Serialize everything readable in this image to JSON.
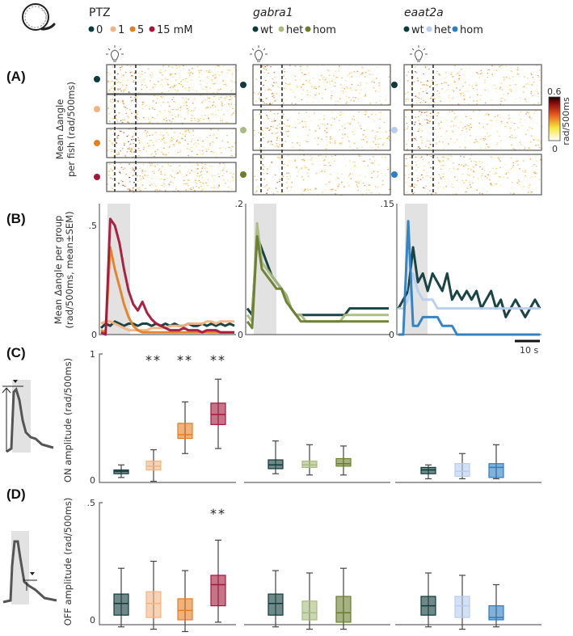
{
  "header": {
    "groups": [
      {
        "title": "PTZ",
        "italic": false,
        "legend": [
          {
            "label": "0",
            "color": "#0f3a3a"
          },
          {
            "label": "1",
            "color": "#f2b482"
          },
          {
            "label": "5",
            "color": "#e67e22"
          },
          {
            "label": "15 mM",
            "color": "#a5163a"
          }
        ]
      },
      {
        "title": "gabra1",
        "italic": true,
        "legend": [
          {
            "label": "wt",
            "color": "#0f3a3a"
          },
          {
            "label": "het",
            "color": "#a9bb7f"
          },
          {
            "label": "hom",
            "color": "#6b7e2c"
          }
        ]
      },
      {
        "title": "eaat2a",
        "italic": true,
        "legend": [
          {
            "label": "wt",
            "color": "#0f3a3a"
          },
          {
            "label": "het",
            "color": "#b7cdee"
          },
          {
            "label": "hom",
            "color": "#2b7ec2"
          }
        ]
      }
    ]
  },
  "panels": {
    "A": {
      "letter": "(A)",
      "ylabel_line1": "Mean Δangle",
      "ylabel_line2": "per fish (rad/500ms)",
      "colorbar": {
        "max_label": "0.6",
        "min_label": "0",
        "label": "rad/500ms"
      }
    },
    "B": {
      "letter": "(B)",
      "ylabel_line1": "Mean Δangle  per group",
      "ylabel_line2": "(rad/500ms, mean±SEM)",
      "scalebar_label": "10 s"
    },
    "C": {
      "letter": "(C)",
      "ylabel": "ON amplitude (rad/500ms)"
    },
    "D": {
      "letter": "(D)",
      "ylabel": "OFF amplitude (rad/500ms)"
    }
  },
  "chart_data": [
    {
      "type": "heatmap",
      "panel": "A",
      "title": "Per-fish mean Δangle raster",
      "groups": [
        "PTZ",
        "gabra1",
        "eaat2a"
      ],
      "rows": [
        [
          "0",
          "1",
          "5",
          "15 mM"
        ],
        [
          "wt",
          "het",
          "hom"
        ],
        [
          "wt",
          "het",
          "hom"
        ]
      ],
      "colorscale": {
        "min": 0,
        "max": 0.6,
        "unit": "rad/500ms",
        "colors": [
          "#ffffff",
          "#f6e43a",
          "#e8561c",
          "#8a0c0c",
          "#1a0000"
        ]
      },
      "light_on_marker": "lightbulb",
      "dashed_lines": [
        "light on",
        "light off"
      ]
    },
    {
      "type": "line",
      "panel": "B",
      "title": "PTZ",
      "ylim": [
        0,
        0.6
      ],
      "yticks": [
        0,
        0.5
      ],
      "ytick_labels": [
        "0",
        ".5"
      ],
      "shaded_region": "light on",
      "series": [
        {
          "name": "0",
          "color": "#0f3a3a",
          "values": [
            0.03,
            0.05,
            0.04,
            0.06,
            0.05,
            0.04,
            0.05,
            0.05,
            0.04,
            0.05,
            0.05,
            0.04,
            0.05,
            0.04,
            0.05,
            0.04,
            0.05,
            0.04,
            0.04,
            0.05,
            0.04,
            0.04,
            0.05,
            0.04,
            0.05,
            0.04,
            0.05,
            0.04,
            0.05,
            0.04
          ]
        },
        {
          "name": "1",
          "color": "#f2b482",
          "values": [
            0.05,
            0.06,
            0.06,
            0.05,
            0.04,
            0.03,
            0.02,
            0.02,
            0.02,
            0.02,
            0.02,
            0.03,
            0.03,
            0.03,
            0.03,
            0.04,
            0.04,
            0.04,
            0.04,
            0.05,
            0.05,
            0.05,
            0.05,
            0.06,
            0.06,
            0.05,
            0.06,
            0.06,
            0.06,
            0.06
          ]
        },
        {
          "name": "5",
          "color": "#e67e22",
          "values": [
            0.02,
            0.01,
            0.4,
            0.3,
            0.22,
            0.14,
            0.08,
            0.04,
            0.02,
            0.01,
            0.01,
            0.01,
            0.01,
            0.01,
            0.01,
            0.01,
            0.01,
            0.01,
            0.01,
            0.01,
            0.01,
            0.01,
            0.01,
            0.01,
            0.01,
            0.01,
            0.01,
            0.01,
            0.01,
            0.01
          ]
        },
        {
          "name": "15 mM",
          "color": "#a5163a",
          "values": [
            0.01,
            0.0,
            0.53,
            0.5,
            0.42,
            0.3,
            0.2,
            0.14,
            0.11,
            0.15,
            0.1,
            0.07,
            0.05,
            0.04,
            0.03,
            0.02,
            0.02,
            0.02,
            0.03,
            0.02,
            0.02,
            0.02,
            0.01,
            0.02,
            0.02,
            0.02,
            0.01,
            0.01,
            0.01,
            0.01
          ]
        }
      ]
    },
    {
      "type": "line",
      "panel": "B",
      "title": "gabra1",
      "ylim": [
        0,
        0.2
      ],
      "yticks": [
        0,
        0.2
      ],
      "ytick_labels": [
        "0",
        ".2"
      ],
      "shaded_region": "light on",
      "series": [
        {
          "name": "wt",
          "color": "#0f3a3a",
          "values": [
            0.04,
            0.03,
            0.15,
            0.13,
            0.11,
            0.09,
            0.08,
            0.07,
            0.06,
            0.04,
            0.03,
            0.03,
            0.03,
            0.03,
            0.03,
            0.03,
            0.03,
            0.03,
            0.03,
            0.03,
            0.03,
            0.04,
            0.04,
            0.04,
            0.04,
            0.04,
            0.04,
            0.04,
            0.04,
            0.04
          ]
        },
        {
          "name": "het",
          "color": "#a9bb7f",
          "values": [
            0.03,
            0.02,
            0.17,
            0.11,
            0.1,
            0.09,
            0.08,
            0.07,
            0.06,
            0.04,
            0.03,
            0.03,
            0.02,
            0.02,
            0.02,
            0.02,
            0.02,
            0.02,
            0.02,
            0.02,
            0.03,
            0.03,
            0.03,
            0.03,
            0.03,
            0.03,
            0.03,
            0.03,
            0.03,
            0.03
          ]
        },
        {
          "name": "hom",
          "color": "#6b7e2c",
          "values": [
            0.02,
            0.01,
            0.15,
            0.1,
            0.09,
            0.08,
            0.07,
            0.07,
            0.05,
            0.04,
            0.03,
            0.02,
            0.02,
            0.02,
            0.02,
            0.02,
            0.02,
            0.02,
            0.02,
            0.02,
            0.02,
            0.02,
            0.02,
            0.02,
            0.02,
            0.02,
            0.02,
            0.02,
            0.02,
            0.02
          ]
        }
      ]
    },
    {
      "type": "line",
      "panel": "B",
      "title": "eaat2a",
      "ylim": [
        0,
        0.15
      ],
      "yticks": [
        0,
        0.15
      ],
      "ytick_labels": [
        "0",
        ".15"
      ],
      "shaded_region": "light on",
      "scalebar": "10 s",
      "series": [
        {
          "name": "wt",
          "color": "#0f3a3a",
          "values": [
            0.03,
            0.04,
            0.05,
            0.1,
            0.06,
            0.07,
            0.05,
            0.07,
            0.06,
            0.05,
            0.07,
            0.04,
            0.05,
            0.04,
            0.05,
            0.04,
            0.05,
            0.03,
            0.04,
            0.05,
            0.03,
            0.04,
            0.02,
            0.03,
            0.04,
            0.03,
            0.02,
            0.03,
            0.04,
            0.03
          ]
        },
        {
          "name": "het",
          "color": "#b7cdee",
          "values": [
            0.03,
            0.03,
            0.04,
            0.07,
            0.05,
            0.04,
            0.04,
            0.04,
            0.03,
            0.03,
            0.03,
            0.03,
            0.03,
            0.03,
            0.03,
            0.03,
            0.03,
            0.03,
            0.03,
            0.03,
            0.03,
            0.03,
            0.03,
            0.03,
            0.03,
            0.03,
            0.03,
            0.03,
            0.03,
            0.03
          ]
        },
        {
          "name": "hom",
          "color": "#2b7ec2",
          "values": [
            0.0,
            0.0,
            0.13,
            0.01,
            0.01,
            0.02,
            0.02,
            0.02,
            0.02,
            0.01,
            0.01,
            0.01,
            0.0,
            0.0,
            0.0,
            0.0,
            0.0,
            0.0,
            0.0,
            0.0,
            0.0,
            0.0,
            0.0,
            0.0,
            0.0,
            0.0,
            0.0,
            0.0,
            0.0,
            0.0
          ]
        }
      ]
    },
    {
      "type": "box",
      "panel": "C",
      "title": "ON amplitude",
      "ylabel": "ON amplitude (rad/500ms)",
      "ylim": [
        0,
        1
      ],
      "yticks": [
        0,
        1
      ],
      "ytick_labels": [
        "0",
        "1"
      ],
      "groups": [
        {
          "name": "PTZ",
          "boxes": [
            {
              "label": "0",
              "color": "#0f3a3a",
              "whisker_low": 0.02,
              "q1": 0.05,
              "median": 0.07,
              "q3": 0.08,
              "whisker_high": 0.12,
              "sig": ""
            },
            {
              "label": "1",
              "color": "#f2b482",
              "whisker_low": -0.01,
              "q1": 0.08,
              "median": 0.11,
              "q3": 0.15,
              "whisker_high": 0.24,
              "sig": "**"
            },
            {
              "label": "5",
              "color": "#e67e22",
              "whisker_low": 0.21,
              "q1": 0.33,
              "median": 0.36,
              "q3": 0.45,
              "whisker_high": 0.62,
              "sig": "**"
            },
            {
              "label": "15 mM",
              "color": "#a5163a",
              "whisker_low": 0.25,
              "q1": 0.44,
              "median": 0.52,
              "q3": 0.61,
              "whisker_high": 0.8,
              "sig": "**"
            }
          ]
        },
        {
          "name": "gabra1",
          "boxes": [
            {
              "label": "wt",
              "color": "#0f3a3a",
              "whisker_low": 0.05,
              "q1": 0.09,
              "median": 0.12,
              "q3": 0.16,
              "whisker_high": 0.31,
              "sig": ""
            },
            {
              "label": "het",
              "color": "#a9bb7f",
              "whisker_low": 0.04,
              "q1": 0.1,
              "median": 0.12,
              "q3": 0.15,
              "whisker_high": 0.28,
              "sig": ""
            },
            {
              "label": "hom",
              "color": "#6b7e2c",
              "whisker_low": 0.04,
              "q1": 0.11,
              "median": 0.13,
              "q3": 0.17,
              "whisker_high": 0.27,
              "sig": ""
            }
          ]
        },
        {
          "name": "eaat2a",
          "boxes": [
            {
              "label": "wt",
              "color": "#0f3a3a",
              "whisker_low": 0.01,
              "q1": 0.05,
              "median": 0.08,
              "q3": 0.1,
              "whisker_high": 0.12,
              "sig": ""
            },
            {
              "label": "het",
              "color": "#b7cdee",
              "whisker_low": 0.01,
              "q1": 0.03,
              "median": 0.07,
              "q3": 0.13,
              "whisker_high": 0.21,
              "sig": ""
            },
            {
              "label": "hom",
              "color": "#2b7ec2",
              "whisker_low": 0.01,
              "q1": 0.02,
              "median": 0.1,
              "q3": 0.13,
              "whisker_high": 0.28,
              "sig": ""
            }
          ]
        }
      ]
    },
    {
      "type": "box",
      "panel": "D",
      "title": "OFF amplitude",
      "ylabel": "OFF amplitude (rad/500ms)",
      "ylim": [
        0,
        0.5
      ],
      "yticks": [
        0,
        0.5
      ],
      "ytick_labels": [
        "0",
        ".5"
      ],
      "groups": [
        {
          "name": "PTZ",
          "boxes": [
            {
              "label": "0",
              "color": "#0f3a3a",
              "whisker_low": -0.03,
              "q1": 0.02,
              "median": 0.07,
              "q3": 0.11,
              "whisker_high": 0.22,
              "sig": ""
            },
            {
              "label": "1",
              "color": "#f2b482",
              "whisker_low": -0.04,
              "q1": 0.01,
              "median": 0.07,
              "q3": 0.12,
              "whisker_high": 0.25,
              "sig": ""
            },
            {
              "label": "5",
              "color": "#e67e22",
              "whisker_low": -0.05,
              "q1": 0.0,
              "median": 0.04,
              "q3": 0.09,
              "whisker_high": 0.21,
              "sig": ""
            },
            {
              "label": "15 mM",
              "color": "#a5163a",
              "whisker_low": -0.01,
              "q1": 0.06,
              "median": 0.15,
              "q3": 0.19,
              "whisker_high": 0.34,
              "sig": "**"
            }
          ]
        },
        {
          "name": "gabra1",
          "boxes": [
            {
              "label": "wt",
              "color": "#0f3a3a",
              "whisker_low": -0.03,
              "q1": 0.02,
              "median": 0.07,
              "q3": 0.11,
              "whisker_high": 0.21,
              "sig": ""
            },
            {
              "label": "het",
              "color": "#a9bb7f",
              "whisker_low": -0.04,
              "q1": 0.0,
              "median": 0.03,
              "q3": 0.08,
              "whisker_high": 0.2,
              "sig": ""
            },
            {
              "label": "hom",
              "color": "#6b7e2c",
              "whisker_low": -0.04,
              "q1": -0.01,
              "median": 0.03,
              "q3": 0.1,
              "whisker_high": 0.22,
              "sig": ""
            }
          ]
        },
        {
          "name": "eaat2a",
          "boxes": [
            {
              "label": "wt",
              "color": "#0f3a3a",
              "whisker_low": -0.03,
              "q1": 0.02,
              "median": 0.06,
              "q3": 0.1,
              "whisker_high": 0.2,
              "sig": ""
            },
            {
              "label": "het",
              "color": "#b7cdee",
              "whisker_low": -0.04,
              "q1": 0.01,
              "median": 0.06,
              "q3": 0.1,
              "whisker_high": 0.19,
              "sig": ""
            },
            {
              "label": "hom",
              "color": "#2b7ec2",
              "whisker_low": -0.03,
              "q1": 0.0,
              "median": 0.01,
              "q3": 0.06,
              "whisker_high": 0.15,
              "sig": ""
            }
          ]
        }
      ]
    }
  ]
}
